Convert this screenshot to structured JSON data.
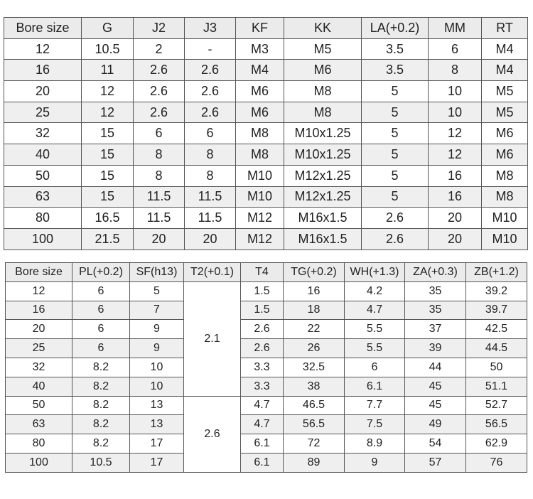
{
  "table1": {
    "headers": [
      "Bore size",
      "G",
      "J2",
      "J3",
      "KF",
      "KK",
      "LA(+0.2)",
      "MM",
      "RT"
    ],
    "rows": [
      [
        "12",
        "10.5",
        "2",
        "-",
        "M3",
        "M5",
        "3.5",
        "6",
        "M4"
      ],
      [
        "16",
        "11",
        "2.6",
        "2.6",
        "M4",
        "M6",
        "3.5",
        "8",
        "M4"
      ],
      [
        "20",
        "12",
        "2.6",
        "2.6",
        "M6",
        "M8",
        "5",
        "10",
        "M5"
      ],
      [
        "25",
        "12",
        "2.6",
        "2.6",
        "M6",
        "M8",
        "5",
        "10",
        "M5"
      ],
      [
        "32",
        "15",
        "6",
        "6",
        "M8",
        "M10x1.25",
        "5",
        "12",
        "M6"
      ],
      [
        "40",
        "15",
        "8",
        "8",
        "M8",
        "M10x1.25",
        "5",
        "12",
        "M6"
      ],
      [
        "50",
        "15",
        "8",
        "8",
        "M10",
        "M12x1.25",
        "5",
        "16",
        "M8"
      ],
      [
        "63",
        "15",
        "11.5",
        "11.5",
        "M10",
        "M12x1.25",
        "5",
        "16",
        "M8"
      ],
      [
        "80",
        "16.5",
        "11.5",
        "11.5",
        "M12",
        "M16x1.5",
        "2.6",
        "20",
        "M10"
      ],
      [
        "100",
        "21.5",
        "20",
        "20",
        "M12",
        "M16x1.5",
        "2.6",
        "20",
        "M10"
      ]
    ]
  },
  "table2": {
    "headers": [
      "Bore size",
      "PL(+0.2)",
      "SF(h13)",
      "T2(+0.1)",
      "T4",
      "TG(+0.2)",
      "WH(+1.3)",
      "ZA(+0.3)",
      "ZB(+1.2)"
    ],
    "t2_groups": [
      {
        "value": "2.1",
        "rows": 6
      },
      {
        "value": "2.6",
        "rows": 4
      }
    ],
    "rows": [
      [
        "12",
        "6",
        "5",
        "1.5",
        "16",
        "4.2",
        "35",
        "39.2"
      ],
      [
        "16",
        "6",
        "7",
        "1.5",
        "18",
        "4.7",
        "35",
        "39.7"
      ],
      [
        "20",
        "6",
        "9",
        "2.6",
        "22",
        "5.5",
        "37",
        "42.5"
      ],
      [
        "25",
        "6",
        "9",
        "2.6",
        "26",
        "5.5",
        "39",
        "44.5"
      ],
      [
        "32",
        "8.2",
        "10",
        "3.3",
        "32.5",
        "6",
        "44",
        "50"
      ],
      [
        "40",
        "8.2",
        "10",
        "3.3",
        "38",
        "6.1",
        "45",
        "51.1"
      ],
      [
        "50",
        "8.2",
        "13",
        "4.7",
        "46.5",
        "7.7",
        "45",
        "52.7"
      ],
      [
        "63",
        "8.2",
        "13",
        "4.7",
        "56.5",
        "7.5",
        "49",
        "56.5"
      ],
      [
        "80",
        "8.2",
        "17",
        "6.1",
        "72",
        "8.9",
        "54",
        "62.9"
      ],
      [
        "100",
        "10.5",
        "17",
        "6.1",
        "89",
        "9",
        "57",
        "76"
      ]
    ]
  }
}
